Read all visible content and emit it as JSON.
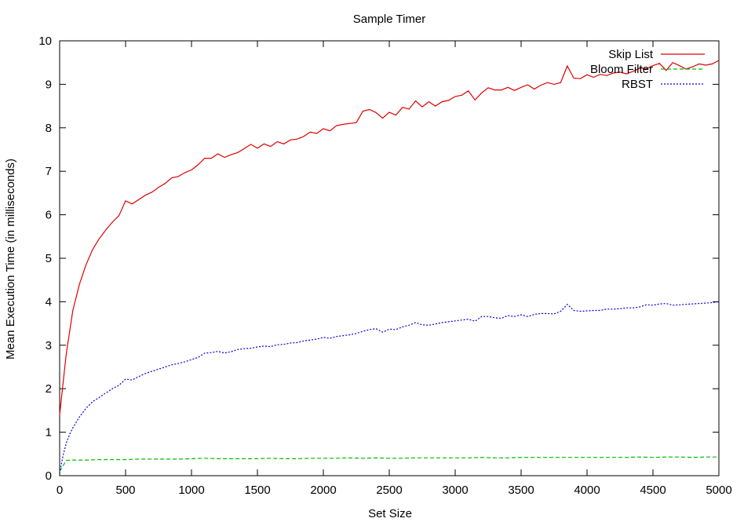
{
  "chart_data": {
    "type": "line",
    "title": "Sample Timer",
    "xlabel": "Set Size",
    "ylabel": "Mean Execution Time (in milliseconds)",
    "xlim": [
      0,
      5000
    ],
    "ylim": [
      0,
      10
    ],
    "xticks": [
      0,
      500,
      1000,
      1500,
      2000,
      2500,
      3000,
      3500,
      4000,
      4500,
      5000
    ],
    "yticks": [
      0,
      1,
      2,
      3,
      4,
      5,
      6,
      7,
      8,
      9,
      10
    ],
    "grid": false,
    "legend_position": "top-right",
    "series": [
      {
        "name": "Skip List",
        "color": "#dd0000",
        "dash": "solid",
        "x": [
          0,
          50,
          100,
          150,
          200,
          250,
          300,
          350,
          400,
          450,
          500,
          550,
          600,
          650,
          700,
          750,
          800,
          850,
          900,
          950,
          1000,
          1050,
          1100,
          1150,
          1200,
          1250,
          1300,
          1350,
          1400,
          1450,
          1500,
          1550,
          1600,
          1650,
          1700,
          1750,
          1800,
          1850,
          1900,
          1950,
          2000,
          2050,
          2100,
          2150,
          2200,
          2250,
          2300,
          2350,
          2400,
          2450,
          2500,
          2550,
          2600,
          2650,
          2700,
          2750,
          2800,
          2850,
          2900,
          2950,
          3000,
          3050,
          3100,
          3150,
          3200,
          3250,
          3300,
          3350,
          3400,
          3450,
          3500,
          3550,
          3600,
          3650,
          3700,
          3750,
          3800,
          3850,
          3900,
          3950,
          4000,
          4050,
          4100,
          4150,
          4200,
          4250,
          4300,
          4350,
          4400,
          4450,
          4500,
          4550,
          4600,
          4650,
          4700,
          4750,
          4800,
          4850,
          4900,
          4950,
          5000
        ],
        "y": [
          1.4,
          2.8,
          3.8,
          4.4,
          4.85,
          5.2,
          5.45,
          5.65,
          5.83,
          5.98,
          6.32,
          6.25,
          6.35,
          6.45,
          6.52,
          6.63,
          6.72,
          6.85,
          6.88,
          6.97,
          7.03,
          7.15,
          7.3,
          7.3,
          7.4,
          7.32,
          7.38,
          7.43,
          7.52,
          7.62,
          7.53,
          7.63,
          7.57,
          7.68,
          7.63,
          7.72,
          7.74,
          7.8,
          7.9,
          7.87,
          7.98,
          7.93,
          8.05,
          8.08,
          8.1,
          8.12,
          8.38,
          8.42,
          8.35,
          8.22,
          8.36,
          8.29,
          8.47,
          8.43,
          8.62,
          8.48,
          8.6,
          8.5,
          8.6,
          8.63,
          8.72,
          8.75,
          8.85,
          8.64,
          8.8,
          8.92,
          8.87,
          8.87,
          8.93,
          8.86,
          8.93,
          8.99,
          8.89,
          8.98,
          9.04,
          9.0,
          9.04,
          9.42,
          9.14,
          9.13,
          9.22,
          9.16,
          9.23,
          9.2,
          9.26,
          9.28,
          9.24,
          9.3,
          9.37,
          9.36,
          9.43,
          9.48,
          9.32,
          9.5,
          9.43,
          9.35,
          9.4,
          9.47,
          9.44,
          9.47,
          9.55
        ]
      },
      {
        "name": "Bloom Filter",
        "color": "#00bb00",
        "dash": "dashed",
        "x": [
          0,
          50,
          100,
          200,
          300,
          400,
          500,
          600,
          700,
          800,
          900,
          1000,
          1100,
          1200,
          1300,
          1400,
          1500,
          1600,
          1700,
          1800,
          1900,
          2000,
          2100,
          2200,
          2300,
          2400,
          2500,
          2600,
          2700,
          2800,
          2900,
          3000,
          3100,
          3200,
          3300,
          3400,
          3500,
          3600,
          3700,
          3800,
          3900,
          4000,
          4100,
          4200,
          4300,
          4400,
          4500,
          4600,
          4700,
          4800,
          4900,
          5000
        ],
        "y": [
          0.1,
          0.35,
          0.36,
          0.36,
          0.37,
          0.37,
          0.37,
          0.38,
          0.38,
          0.38,
          0.38,
          0.39,
          0.4,
          0.39,
          0.39,
          0.39,
          0.39,
          0.4,
          0.39,
          0.39,
          0.4,
          0.4,
          0.4,
          0.41,
          0.4,
          0.41,
          0.4,
          0.4,
          0.41,
          0.41,
          0.41,
          0.41,
          0.41,
          0.42,
          0.41,
          0.41,
          0.42,
          0.42,
          0.42,
          0.42,
          0.42,
          0.42,
          0.42,
          0.42,
          0.42,
          0.43,
          0.42,
          0.43,
          0.43,
          0.42,
          0.43,
          0.43
        ]
      },
      {
        "name": "RBST",
        "color": "#0000dd",
        "dash": "dotted",
        "x": [
          0,
          25,
          50,
          75,
          100,
          150,
          200,
          250,
          300,
          350,
          400,
          450,
          500,
          550,
          600,
          650,
          700,
          750,
          800,
          850,
          900,
          950,
          1000,
          1050,
          1100,
          1150,
          1200,
          1250,
          1300,
          1350,
          1400,
          1450,
          1500,
          1550,
          1600,
          1650,
          1700,
          1750,
          1800,
          1850,
          1900,
          1950,
          2000,
          2050,
          2100,
          2150,
          2200,
          2250,
          2300,
          2350,
          2400,
          2450,
          2500,
          2550,
          2600,
          2650,
          2700,
          2750,
          2800,
          2850,
          2900,
          2950,
          3000,
          3050,
          3100,
          3150,
          3200,
          3250,
          3300,
          3350,
          3400,
          3450,
          3500,
          3550,
          3600,
          3650,
          3700,
          3750,
          3800,
          3850,
          3900,
          3950,
          4000,
          4050,
          4100,
          4150,
          4200,
          4250,
          4300,
          4350,
          4400,
          4450,
          4500,
          4550,
          4600,
          4650,
          4700,
          4750,
          4800,
          4850,
          4900,
          4950,
          5000
        ],
        "y": [
          0.05,
          0.45,
          0.75,
          0.95,
          1.1,
          1.35,
          1.55,
          1.7,
          1.8,
          1.9,
          2.0,
          2.08,
          2.22,
          2.2,
          2.28,
          2.35,
          2.4,
          2.45,
          2.5,
          2.55,
          2.58,
          2.62,
          2.67,
          2.72,
          2.82,
          2.83,
          2.86,
          2.82,
          2.85,
          2.9,
          2.92,
          2.93,
          2.96,
          2.98,
          2.97,
          3.01,
          3.02,
          3.05,
          3.06,
          3.1,
          3.12,
          3.14,
          3.18,
          3.16,
          3.2,
          3.22,
          3.24,
          3.27,
          3.32,
          3.36,
          3.38,
          3.3,
          3.37,
          3.36,
          3.42,
          3.46,
          3.52,
          3.47,
          3.46,
          3.49,
          3.52,
          3.54,
          3.56,
          3.58,
          3.6,
          3.55,
          3.66,
          3.66,
          3.63,
          3.62,
          3.68,
          3.66,
          3.7,
          3.66,
          3.71,
          3.73,
          3.73,
          3.72,
          3.78,
          3.94,
          3.8,
          3.78,
          3.79,
          3.8,
          3.8,
          3.83,
          3.83,
          3.84,
          3.86,
          3.86,
          3.88,
          3.93,
          3.92,
          3.95,
          3.96,
          3.92,
          3.93,
          3.94,
          3.95,
          3.96,
          3.97,
          3.98,
          4.0
        ]
      }
    ]
  }
}
